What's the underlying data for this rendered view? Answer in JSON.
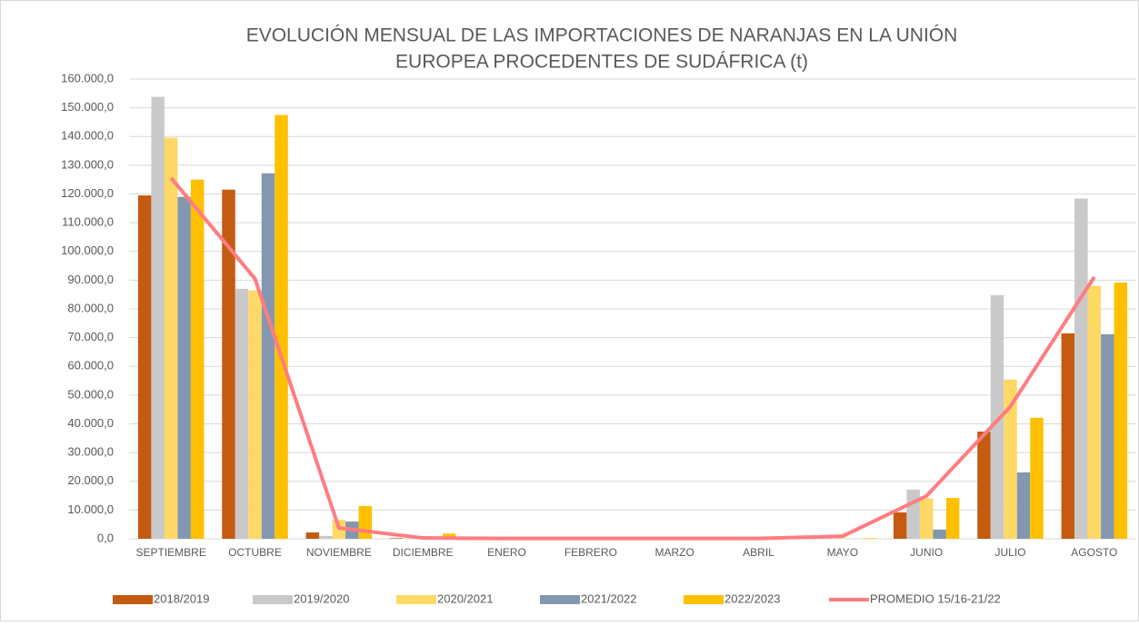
{
  "chart_data": {
    "type": "bar_line",
    "title": [
      "EVOLUCIÓN MENSUAL DE LAS IMPORTACIONES DE NARANJAS EN LA UNIÓN",
      "EUROPEA PROCEDENTES DE SUDÁFRICA (t)"
    ],
    "categories": [
      "SEPTIEMBRE",
      "OCTUBRE",
      "NOVIEMBRE",
      "DICIEMBRE",
      "ENERO",
      "FEBRERO",
      "MARZO",
      "ABRIL",
      "MAYO",
      "JUNIO",
      "JULIO",
      "AGOSTO"
    ],
    "series": [
      {
        "name": "2018/2019",
        "color": "#c55a11",
        "kind": "bar",
        "values": [
          119500,
          121500,
          2200,
          200,
          0,
          0,
          0,
          0,
          0,
          9200,
          37300,
          71500
        ]
      },
      {
        "name": "2019/2020",
        "color": "#c9c9c9",
        "kind": "bar",
        "values": [
          153800,
          87000,
          1000,
          100,
          0,
          0,
          0,
          0,
          0,
          17100,
          84800,
          118400
        ]
      },
      {
        "name": "2020/2021",
        "color": "#ffd966",
        "kind": "bar",
        "values": [
          139600,
          86400,
          6600,
          300,
          0,
          0,
          0,
          0,
          200,
          14000,
          55400,
          88000
        ]
      },
      {
        "name": "2021/2022",
        "color": "#8497b0",
        "kind": "bar",
        "values": [
          119000,
          127200,
          6000,
          100,
          0,
          0,
          0,
          0,
          0,
          3200,
          23100,
          71200
        ]
      },
      {
        "name": "2022/2023",
        "color": "#ffc000",
        "kind": "bar",
        "values": [
          125000,
          147500,
          11400,
          1800,
          0,
          0,
          0,
          0,
          200,
          14200,
          42100,
          89200
        ]
      },
      {
        "name": "PROMEDIO 15/16-21/22",
        "color": "#ff7c80",
        "kind": "line",
        "values": [
          125600,
          90500,
          3800,
          300,
          100,
          100,
          100,
          100,
          900,
          14900,
          46000,
          91100
        ]
      }
    ],
    "ylim": [
      0,
      160000
    ],
    "yticks": [
      {
        "value": 0,
        "label": "0,0"
      },
      {
        "value": 10000,
        "label": "10.000,0"
      },
      {
        "value": 20000,
        "label": "20.000,0"
      },
      {
        "value": 30000,
        "label": "30.000,0"
      },
      {
        "value": 40000,
        "label": "40.000,0"
      },
      {
        "value": 50000,
        "label": "50.000,0"
      },
      {
        "value": 60000,
        "label": "60.000,0"
      },
      {
        "value": 70000,
        "label": "70.000,0"
      },
      {
        "value": 80000,
        "label": "80.000,0"
      },
      {
        "value": 90000,
        "label": "90.000,0"
      },
      {
        "value": 100000,
        "label": "100.000,0"
      },
      {
        "value": 110000,
        "label": "110.000,0"
      },
      {
        "value": 120000,
        "label": "120.000,0"
      },
      {
        "value": 130000,
        "label": "130.000,0"
      },
      {
        "value": 140000,
        "label": "140.000,0"
      },
      {
        "value": 150000,
        "label": "150.000,0"
      },
      {
        "value": 160000,
        "label": "160.000,0"
      }
    ],
    "grid": true,
    "legend": "bottom"
  }
}
